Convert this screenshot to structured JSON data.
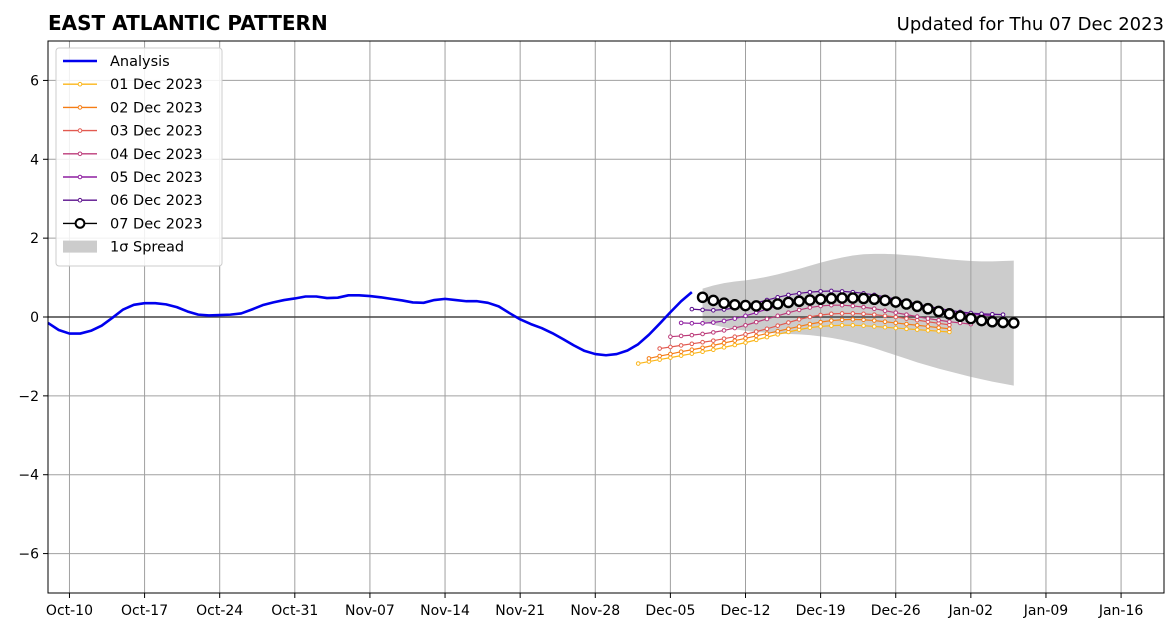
{
  "chart_data": {
    "type": "line",
    "title": "EAST ATLANTIC PATTERN",
    "subtitle": "Updated for Thu 07 Dec 2023",
    "xlabel": "",
    "ylabel": "",
    "xlim": [
      "2023-10-08",
      "2024-01-20"
    ],
    "ylim": [
      -7,
      7
    ],
    "yticks": [
      -6,
      -4,
      -2,
      0,
      2,
      4,
      6
    ],
    "ytick_labels": [
      "−6",
      "−4",
      "−2",
      "0",
      "2",
      "4",
      "6"
    ],
    "xticks": [
      "2023-10-10",
      "2023-10-17",
      "2023-10-24",
      "2023-10-31",
      "2023-11-07",
      "2023-11-14",
      "2023-11-21",
      "2023-11-28",
      "2023-12-05",
      "2023-12-12",
      "2023-12-19",
      "2023-12-26",
      "2024-01-02",
      "2024-01-09",
      "2024-01-16"
    ],
    "xtick_labels": [
      "Oct-10",
      "Oct-17",
      "Oct-24",
      "Oct-31",
      "Nov-07",
      "Nov-14",
      "Nov-21",
      "Nov-28",
      "Dec-05",
      "Dec-12",
      "Dec-19",
      "Dec-26",
      "Jan-02",
      "Jan-09",
      "Jan-16"
    ],
    "grid": true,
    "legend_position": "top-left",
    "analysis": {
      "name": "Analysis",
      "color": "#0000ee",
      "x": [
        "2023-10-08",
        "2023-10-09",
        "2023-10-10",
        "2023-10-11",
        "2023-10-12",
        "2023-10-13",
        "2023-10-14",
        "2023-10-15",
        "2023-10-16",
        "2023-10-17",
        "2023-10-18",
        "2023-10-19",
        "2023-10-20",
        "2023-10-21",
        "2023-10-22",
        "2023-10-23",
        "2023-10-24",
        "2023-10-25",
        "2023-10-26",
        "2023-10-27",
        "2023-10-28",
        "2023-10-29",
        "2023-10-30",
        "2023-10-31",
        "2023-11-01",
        "2023-11-02",
        "2023-11-03",
        "2023-11-04",
        "2023-11-05",
        "2023-11-06",
        "2023-11-07",
        "2023-11-08",
        "2023-11-09",
        "2023-11-10",
        "2023-11-11",
        "2023-11-12",
        "2023-11-13",
        "2023-11-14",
        "2023-11-15",
        "2023-11-16",
        "2023-11-17",
        "2023-11-18",
        "2023-11-19",
        "2023-11-20",
        "2023-11-21",
        "2023-11-22",
        "2023-11-23",
        "2023-11-24",
        "2023-11-25",
        "2023-11-26",
        "2023-11-27",
        "2023-11-28",
        "2023-11-29",
        "2023-11-30",
        "2023-12-01",
        "2023-12-02",
        "2023-12-03",
        "2023-12-04",
        "2023-12-05",
        "2023-12-06",
        "2023-12-07"
      ],
      "y": [
        -0.15,
        -0.33,
        -0.42,
        -0.42,
        -0.35,
        -0.22,
        -0.02,
        0.19,
        0.31,
        0.35,
        0.35,
        0.32,
        0.25,
        0.14,
        0.06,
        0.04,
        0.05,
        0.06,
        0.09,
        0.19,
        0.3,
        0.37,
        0.43,
        0.47,
        0.52,
        0.52,
        0.48,
        0.49,
        0.55,
        0.55,
        0.53,
        0.5,
        0.46,
        0.42,
        0.37,
        0.36,
        0.43,
        0.46,
        0.43,
        0.4,
        0.4,
        0.36,
        0.27,
        0.1,
        -0.06,
        -0.18,
        -0.28,
        -0.41,
        -0.56,
        -0.72,
        -0.86,
        -0.94,
        -0.97,
        -0.94,
        -0.85,
        -0.69,
        -0.45,
        -0.17,
        0.12,
        0.4,
        0.63
      ]
    },
    "forecasts": [
      {
        "name": "01 Dec 2023",
        "color": "#fbb61a",
        "start": "2023-12-02",
        "x_end": "2023-12-31",
        "y": [
          -1.18,
          -1.13,
          -1.08,
          -1.03,
          -0.98,
          -0.93,
          -0.88,
          -0.83,
          -0.77,
          -0.71,
          -0.65,
          -0.58,
          -0.51,
          -0.44,
          -0.38,
          -0.32,
          -0.27,
          -0.24,
          -0.22,
          -0.21,
          -0.21,
          -0.22,
          -0.24,
          -0.26,
          -0.28,
          -0.3,
          -0.32,
          -0.34,
          -0.36,
          -0.38
        ]
      },
      {
        "name": "02 Dec 2023",
        "color": "#f57d15",
        "start": "2023-12-03",
        "x_end": "2023-12-31",
        "y": [
          -1.05,
          -0.99,
          -0.94,
          -0.88,
          -0.83,
          -0.78,
          -0.72,
          -0.66,
          -0.6,
          -0.54,
          -0.48,
          -0.42,
          -0.36,
          -0.3,
          -0.24,
          -0.18,
          -0.13,
          -0.09,
          -0.07,
          -0.06,
          -0.07,
          -0.09,
          -0.12,
          -0.15,
          -0.18,
          -0.21,
          -0.24,
          -0.27,
          -0.3
        ]
      },
      {
        "name": "03 Dec 2023",
        "color": "#e25a50",
        "start": "2023-12-04",
        "x_end": "2023-12-31",
        "y": [
          -0.8,
          -0.76,
          -0.72,
          -0.68,
          -0.64,
          -0.6,
          -0.55,
          -0.5,
          -0.44,
          -0.37,
          -0.3,
          -0.22,
          -0.14,
          -0.06,
          0.0,
          0.05,
          0.08,
          0.09,
          0.09,
          0.08,
          0.06,
          0.03,
          0.0,
          -0.04,
          -0.08,
          -0.12,
          -0.16,
          -0.2
        ]
      },
      {
        "name": "04 Dec 2023",
        "color": "#bc3b7a",
        "start": "2023-12-05",
        "x_end": "2024-01-02",
        "y": [
          -0.5,
          -0.48,
          -0.46,
          -0.43,
          -0.39,
          -0.34,
          -0.28,
          -0.21,
          -0.13,
          -0.05,
          0.03,
          0.11,
          0.18,
          0.24,
          0.28,
          0.3,
          0.3,
          0.28,
          0.25,
          0.21,
          0.16,
          0.11,
          0.06,
          0.01,
          -0.04,
          -0.08,
          -0.12,
          -0.15,
          -0.18
        ]
      },
      {
        "name": "05 Dec 2023",
        "color": "#8e1fa0",
        "start": "2023-12-06",
        "x_end": "2024-01-04",
        "y": [
          -0.15,
          -0.16,
          -0.16,
          -0.14,
          -0.1,
          -0.04,
          0.03,
          0.11,
          0.2,
          0.29,
          0.37,
          0.44,
          0.49,
          0.52,
          0.53,
          0.52,
          0.5,
          0.47,
          0.43,
          0.38,
          0.33,
          0.28,
          0.23,
          0.19,
          0.15,
          0.12,
          0.09,
          0.07,
          0.05,
          0.04
        ]
      },
      {
        "name": "06 Dec 2023",
        "color": "#5a0f8c",
        "start": "2023-12-07",
        "x_end": "2024-01-05",
        "y": [
          0.2,
          0.18,
          0.17,
          0.19,
          0.23,
          0.29,
          0.36,
          0.43,
          0.5,
          0.56,
          0.6,
          0.63,
          0.65,
          0.66,
          0.65,
          0.63,
          0.6,
          0.56,
          0.51,
          0.45,
          0.39,
          0.33,
          0.27,
          0.22,
          0.17,
          0.13,
          0.1,
          0.08,
          0.07,
          0.06
        ]
      }
    ],
    "current_forecast": {
      "name": "07 Dec 2023",
      "color": "#000000",
      "start": "2023-12-08",
      "y": [
        0.5,
        0.42,
        0.35,
        0.31,
        0.29,
        0.28,
        0.3,
        0.33,
        0.37,
        0.4,
        0.43,
        0.45,
        0.47,
        0.48,
        0.48,
        0.47,
        0.45,
        0.42,
        0.38,
        0.33,
        0.27,
        0.21,
        0.14,
        0.08,
        0.02,
        -0.04,
        -0.09,
        -0.12,
        -0.14,
        -0.15
      ]
    },
    "spread": {
      "name": "1σ Spread",
      "color": "#cccccc",
      "start": "2023-12-08",
      "upper": [
        0.72,
        0.8,
        0.86,
        0.9,
        0.93,
        0.97,
        1.02,
        1.08,
        1.15,
        1.22,
        1.3,
        1.38,
        1.45,
        1.51,
        1.56,
        1.59,
        1.6,
        1.6,
        1.59,
        1.57,
        1.55,
        1.52,
        1.49,
        1.46,
        1.44,
        1.42,
        1.41,
        1.41,
        1.42,
        1.43
      ],
      "lower": [
        -0.12,
        -0.2,
        -0.26,
        -0.31,
        -0.35,
        -0.38,
        -0.4,
        -0.42,
        -0.43,
        -0.44,
        -0.46,
        -0.49,
        -0.53,
        -0.58,
        -0.64,
        -0.71,
        -0.79,
        -0.88,
        -0.97,
        -1.06,
        -1.15,
        -1.23,
        -1.31,
        -1.38,
        -1.45,
        -1.52,
        -1.58,
        -1.64,
        -1.69,
        -1.74
      ]
    }
  }
}
